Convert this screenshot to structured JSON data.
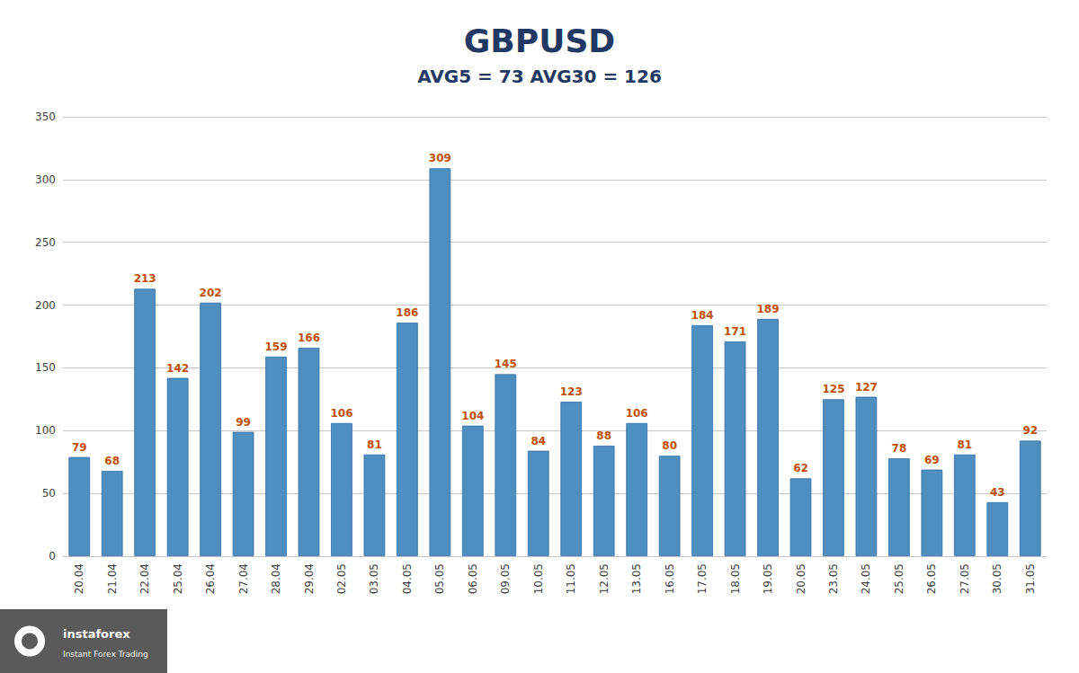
{
  "chart_data": {
    "type": "bar",
    "title": "GBPUSD",
    "subtitle": "AVG5 = 73 AVG30 = 126",
    "categories": [
      "20.04",
      "21.04",
      "22.04",
      "25.04",
      "26.04",
      "27.04",
      "28.04",
      "29.04",
      "02.05",
      "03.05",
      "04.05",
      "05.05",
      "06.05",
      "09.05",
      "10.05",
      "11.05",
      "12.05",
      "13.05",
      "16.05",
      "17.05",
      "18.05",
      "19.05",
      "20.05",
      "23.05",
      "24.05",
      "25.05",
      "26.05",
      "27.05",
      "30.05",
      "31.05"
    ],
    "values": [
      79,
      68,
      213,
      142,
      202,
      99,
      159,
      166,
      106,
      81,
      186,
      309,
      104,
      145,
      84,
      123,
      88,
      106,
      80,
      184,
      171,
      189,
      62,
      125,
      127,
      78,
      69,
      81,
      43,
      92
    ],
    "color": "#4E8FC0",
    "ylim": [
      0,
      350
    ],
    "yticks": [
      0,
      50,
      100,
      150,
      200,
      250,
      300,
      350
    ],
    "grid": true,
    "data_labels": true,
    "annotations": [
      "instaforex",
      "Instant Forex Trading"
    ]
  }
}
